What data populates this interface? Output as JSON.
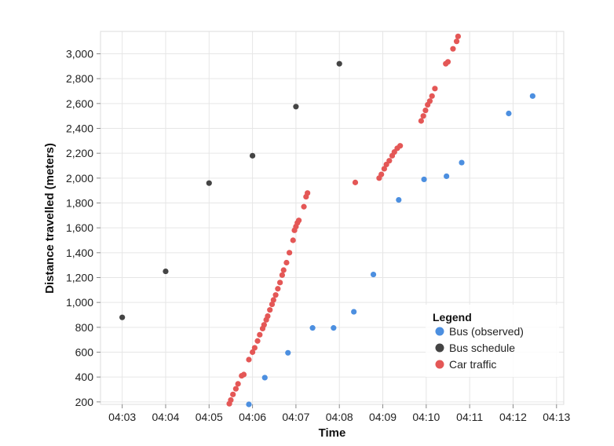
{
  "chart_data": {
    "type": "scatter",
    "title": "",
    "xlabel": "Time",
    "ylabel": "Distance travelled (meters)",
    "x_unit": "minutes after 04:00",
    "xlim": [
      "04:02:30",
      "04:13:10"
    ],
    "ylim": [
      180,
      3180
    ],
    "x_ticks": [
      "04:03",
      "04:04",
      "04:05",
      "04:06",
      "04:07",
      "04:08",
      "04:09",
      "04:10",
      "04:11",
      "04:12",
      "04:13"
    ],
    "y_ticks": [
      "200",
      "400",
      "600",
      "800",
      "1,000",
      "1,200",
      "1,400",
      "1,600",
      "1,800",
      "2,000",
      "2,200",
      "2,400",
      "2,600",
      "2,800",
      "3,000"
    ],
    "grid": true,
    "legend": {
      "title": "Legend",
      "position": "bottom-right"
    },
    "series": [
      {
        "name": "Bus (observed)",
        "color": "#4c8fe0",
        "points": [
          [
            "04:05:55",
            180
          ],
          [
            "04:06:17",
            395
          ],
          [
            "04:06:49",
            595
          ],
          [
            "04:07:23",
            795
          ],
          [
            "04:07:52",
            795
          ],
          [
            "04:08:20",
            925
          ],
          [
            "04:08:47",
            1225
          ],
          [
            "04:09:22",
            1825
          ],
          [
            "04:09:57",
            1990
          ],
          [
            "04:10:28",
            2015
          ],
          [
            "04:10:49",
            2125
          ],
          [
            "04:11:54",
            2520
          ],
          [
            "04:12:27",
            2660
          ]
        ]
      },
      {
        "name": "Bus schedule",
        "color": "#444444",
        "points": [
          [
            "04:03:00",
            880
          ],
          [
            "04:04:00",
            1250
          ],
          [
            "04:05:00",
            1960
          ],
          [
            "04:06:00",
            2180
          ],
          [
            "04:07:00",
            2575
          ],
          [
            "04:08:00",
            2920
          ]
        ]
      },
      {
        "name": "Car traffic",
        "color": "#e45756",
        "points": [
          [
            "04:05:28",
            185
          ],
          [
            "04:05:30",
            215
          ],
          [
            "04:05:33",
            260
          ],
          [
            "04:05:37",
            305
          ],
          [
            "04:05:40",
            345
          ],
          [
            "04:05:45",
            410
          ],
          [
            "04:05:48",
            420
          ],
          [
            "04:05:55",
            540
          ],
          [
            "04:06:00",
            600
          ],
          [
            "04:06:03",
            635
          ],
          [
            "04:06:07",
            690
          ],
          [
            "04:06:10",
            740
          ],
          [
            "04:06:14",
            790
          ],
          [
            "04:06:16",
            820
          ],
          [
            "04:06:19",
            860
          ],
          [
            "04:06:21",
            890
          ],
          [
            "04:06:24",
            940
          ],
          [
            "04:06:27",
            985
          ],
          [
            "04:06:29",
            1020
          ],
          [
            "04:06:32",
            1060
          ],
          [
            "04:06:35",
            1110
          ],
          [
            "04:06:38",
            1160
          ],
          [
            "04:06:41",
            1220
          ],
          [
            "04:06:43",
            1260
          ],
          [
            "04:06:47",
            1320
          ],
          [
            "04:06:51",
            1400
          ],
          [
            "04:06:56",
            1500
          ],
          [
            "04:06:58",
            1580
          ],
          [
            "04:07:00",
            1610
          ],
          [
            "04:07:02",
            1640
          ],
          [
            "04:07:04",
            1660
          ],
          [
            "04:07:11",
            1770
          ],
          [
            "04:07:14",
            1850
          ],
          [
            "04:07:16",
            1880
          ],
          [
            "04:08:22",
            1965
          ],
          [
            "04:08:55",
            2000
          ],
          [
            "04:08:58",
            2030
          ],
          [
            "04:09:02",
            2075
          ],
          [
            "04:09:05",
            2110
          ],
          [
            "04:09:09",
            2140
          ],
          [
            "04:09:13",
            2180
          ],
          [
            "04:09:16",
            2210
          ],
          [
            "04:09:20",
            2240
          ],
          [
            "04:09:24",
            2260
          ],
          [
            "04:09:53",
            2460
          ],
          [
            "04:09:56",
            2500
          ],
          [
            "04:09:59",
            2545
          ],
          [
            "04:10:02",
            2590
          ],
          [
            "04:10:05",
            2620
          ],
          [
            "04:10:08",
            2660
          ],
          [
            "04:10:12",
            2720
          ],
          [
            "04:10:27",
            2920
          ],
          [
            "04:10:30",
            2935
          ],
          [
            "04:10:37",
            3040
          ],
          [
            "04:10:42",
            3100
          ],
          [
            "04:10:44",
            3140
          ]
        ]
      }
    ]
  }
}
